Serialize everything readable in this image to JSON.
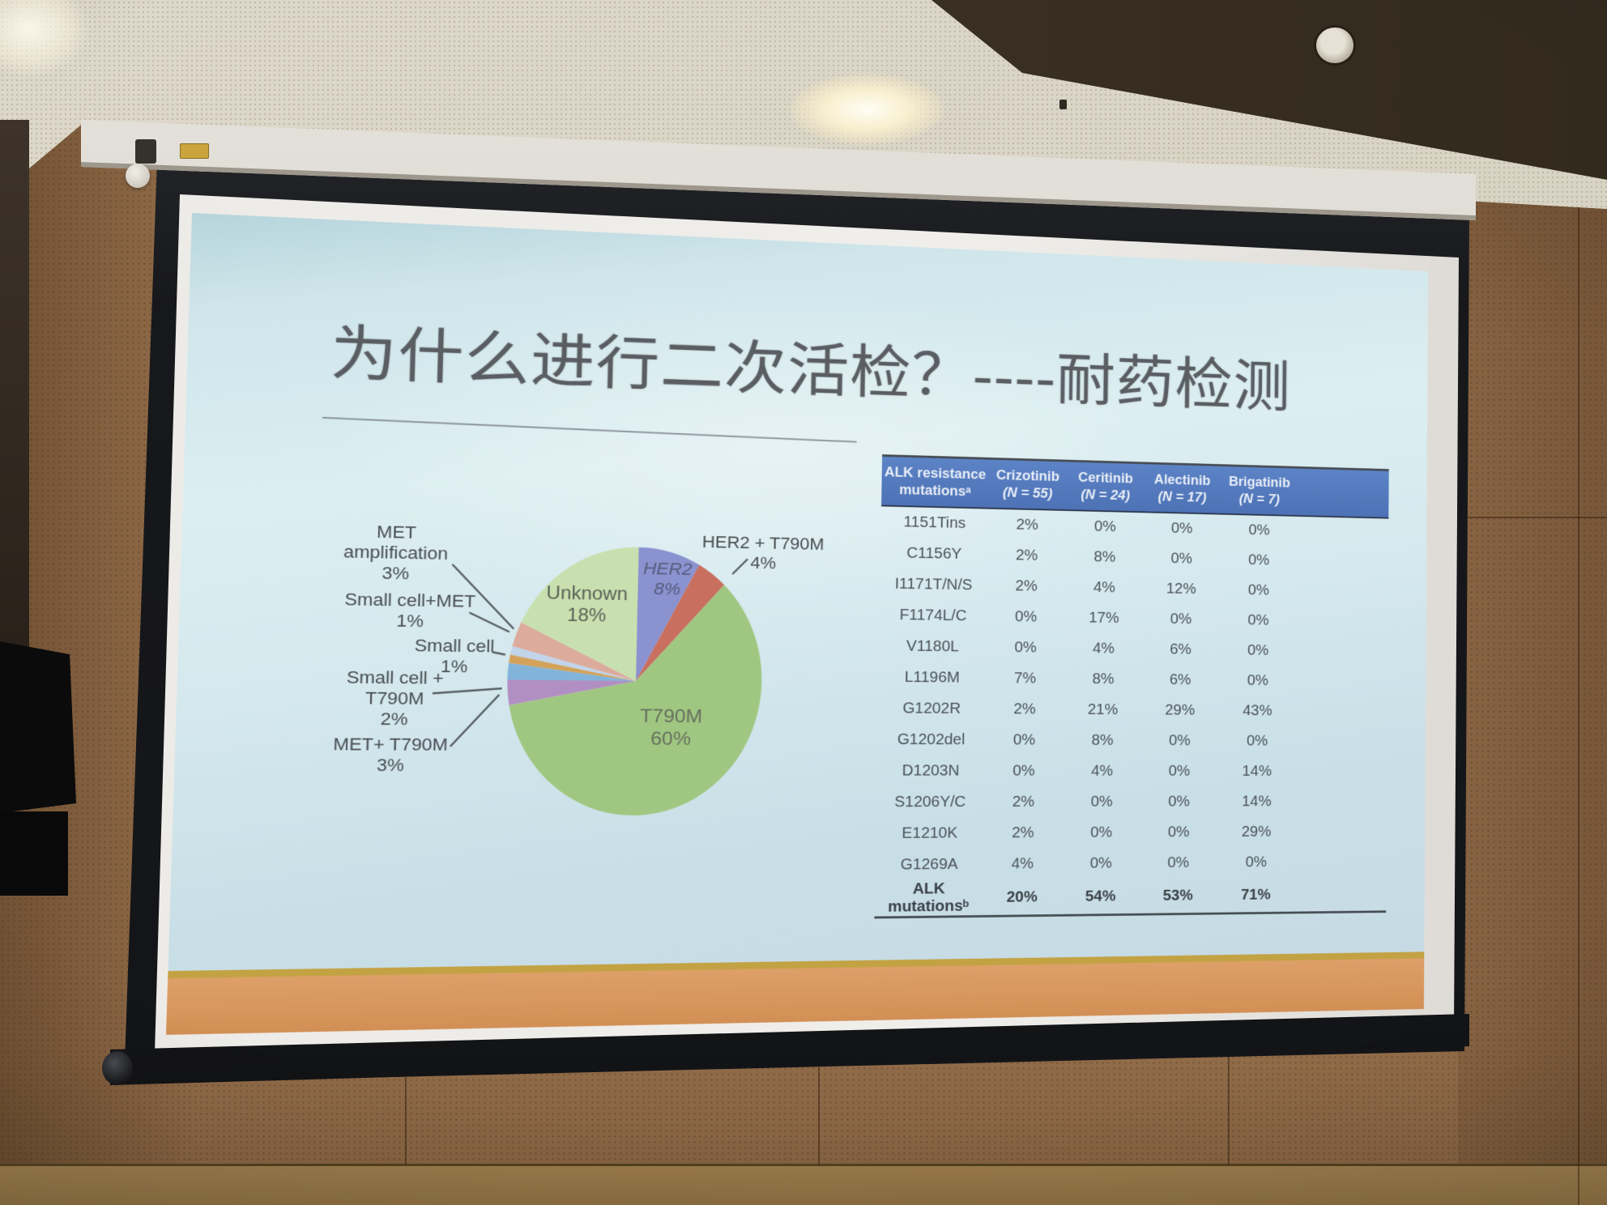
{
  "slide": {
    "title": "为什么进行二次活检？----耐药检测",
    "pie_labels": {
      "unknown": "Unknown\n18%",
      "her2": "HER2\n8%",
      "t790m": "T790M\n60%",
      "her2_t790m": "HER2 + T790M\n4%",
      "met_amp": "MET\namplification\n3%",
      "sc_met": "Small cell+MET\n1%",
      "small_cell": "Small cell\n1%",
      "sc_t790m": "Small cell +\nT790M\n2%",
      "met_t790m": "MET+ T790M\n3%"
    },
    "table": {
      "header": [
        {
          "line1": "ALK resistance",
          "line2": "mutationsᵃ"
        },
        {
          "line1": "Crizotinib",
          "line2": "(N = 55)"
        },
        {
          "line1": "Ceritinib",
          "line2": "(N = 24)"
        },
        {
          "line1": "Alectinib",
          "line2": "(N = 17)"
        },
        {
          "line1": "Brigatinib",
          "line2": "(N = 7)"
        }
      ],
      "rows": [
        [
          "1151Tins",
          "2%",
          "0%",
          "0%",
          "0%"
        ],
        [
          "C1156Y",
          "2%",
          "8%",
          "0%",
          "0%"
        ],
        [
          "I1171T/N/S",
          "2%",
          "4%",
          "12%",
          "0%"
        ],
        [
          "F1174L/C",
          "0%",
          "17%",
          "0%",
          "0%"
        ],
        [
          "V1180L",
          "0%",
          "4%",
          "6%",
          "0%"
        ],
        [
          "L1196M",
          "7%",
          "8%",
          "6%",
          "0%"
        ],
        [
          "G1202R",
          "2%",
          "21%",
          "29%",
          "43%"
        ],
        [
          "G1202del",
          "0%",
          "8%",
          "0%",
          "0%"
        ],
        [
          "D1203N",
          "0%",
          "4%",
          "0%",
          "14%"
        ],
        [
          "S1206Y/C",
          "2%",
          "0%",
          "0%",
          "14%"
        ],
        [
          "E1210K",
          "2%",
          "0%",
          "0%",
          "29%"
        ],
        [
          "G1269A",
          "4%",
          "0%",
          "0%",
          "0%"
        ],
        [
          "ALK mutationsᵇ",
          "20%",
          "54%",
          "53%",
          "71%"
        ]
      ]
    }
  },
  "colors": {
    "slide_background": "#d5e9ee",
    "table_header_blue": "#5377bd",
    "footer_band_orange": "#d6985f",
    "footer_line_gold": "#c3a244",
    "title_gray": "#5a5e63"
  },
  "chart_data": [
    {
      "type": "pie",
      "title": "Mechanisms of acquired resistance (second biopsy)",
      "labels": [
        "HER2",
        "HER2 + T790M",
        "T790M",
        "MET+ T790M",
        "Small cell + T790M",
        "Small cell",
        "Small cell+MET",
        "MET amplification",
        "Unknown"
      ],
      "values": [
        8,
        4,
        60,
        3,
        2,
        1,
        1,
        3,
        18
      ],
      "colors": [
        "#8a92d0",
        "#c86f60",
        "#a0c781",
        "#b28fc2",
        "#82b4da",
        "#d3a159",
        "#c2d4ea",
        "#dcab9b",
        "#c8e0af"
      ],
      "start_angle_deg_from_top": 0,
      "direction": "clockwise",
      "legend_position": "labels-on-and-around-pie"
    },
    {
      "type": "table",
      "columns": [
        "ALK resistance mutationsᵃ",
        "Crizotinib (N = 55)",
        "Ceritinib (N = 24)",
        "Alectinib (N = 17)",
        "Brigatinib (N = 7)"
      ],
      "rows": [
        [
          "1151Tins",
          "2%",
          "0%",
          "0%",
          "0%"
        ],
        [
          "C1156Y",
          "2%",
          "8%",
          "0%",
          "0%"
        ],
        [
          "I1171T/N/S",
          "2%",
          "4%",
          "12%",
          "0%"
        ],
        [
          "F1174L/C",
          "0%",
          "17%",
          "0%",
          "0%"
        ],
        [
          "V1180L",
          "0%",
          "4%",
          "6%",
          "0%"
        ],
        [
          "L1196M",
          "7%",
          "8%",
          "6%",
          "0%"
        ],
        [
          "G1202R",
          "2%",
          "21%",
          "29%",
          "43%"
        ],
        [
          "G1202del",
          "0%",
          "8%",
          "0%",
          "0%"
        ],
        [
          "D1203N",
          "0%",
          "4%",
          "0%",
          "14%"
        ],
        [
          "S1206Y/C",
          "2%",
          "0%",
          "0%",
          "14%"
        ],
        [
          "E1210K",
          "2%",
          "0%",
          "0%",
          "29%"
        ],
        [
          "G1269A",
          "4%",
          "0%",
          "0%",
          "0%"
        ],
        [
          "ALK mutationsᵇ",
          "20%",
          "54%",
          "53%",
          "71%"
        ]
      ]
    }
  ]
}
